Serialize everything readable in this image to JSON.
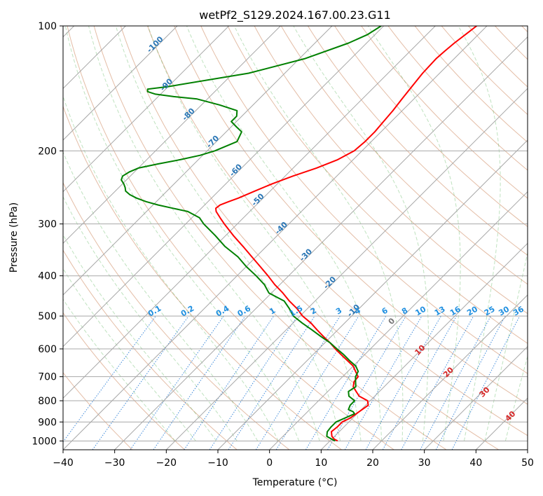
{
  "chart_data": {
    "type": "line",
    "title": "wetPf2_S129.2024.167.00.23.G11",
    "xlabel": "Temperature (°C)",
    "ylabel": "Pressure (hPa)",
    "xlim": [
      -40,
      50
    ],
    "ylim": [
      1050,
      100
    ],
    "y_scale": "log",
    "x_ticks": [
      -40,
      -30,
      -20,
      -10,
      0,
      10,
      20,
      30,
      40,
      50
    ],
    "x_tick_labels": [
      "−40",
      "−30",
      "−20",
      "−10",
      "0",
      "10",
      "20",
      "30",
      "40",
      "50"
    ],
    "y_ticks": [
      100,
      200,
      300,
      400,
      500,
      600,
      700,
      800,
      900,
      1000
    ],
    "y_tick_labels": [
      "100",
      "200",
      "300",
      "400",
      "500",
      "600",
      "700",
      "800",
      "900",
      "1000"
    ],
    "grid": true,
    "isotherm_labels": [
      {
        "t": -100,
        "text": "-100"
      },
      {
        "t": -90,
        "text": "-90"
      },
      {
        "t": -80,
        "text": "-80"
      },
      {
        "t": -70,
        "text": "-70"
      },
      {
        "t": -60,
        "text": "-60"
      },
      {
        "t": -50,
        "text": "-50"
      },
      {
        "t": -40,
        "text": "-40"
      },
      {
        "t": -30,
        "text": "-30"
      },
      {
        "t": -20,
        "text": "-20"
      },
      {
        "t": -10,
        "text": "-10"
      }
    ],
    "mixing_ratio_labels": [
      "0.1",
      "0.2",
      "0.4",
      "0.6",
      "1",
      "1.5",
      "2",
      "3",
      "4",
      "6",
      "8",
      "10",
      "13",
      "16",
      "20",
      "25",
      "30",
      "36"
    ],
    "mixing_ratio_values": [
      0.1,
      0.2,
      0.4,
      0.6,
      1,
      1.5,
      2,
      3,
      4,
      6,
      8,
      10,
      13,
      16,
      20,
      25,
      30,
      36
    ],
    "moist_adiabat_labels": [
      {
        "t": 0,
        "text": "0",
        "color": "#777777"
      },
      {
        "t": 10,
        "text": "10",
        "color": "#d62728"
      },
      {
        "t": 20,
        "text": "20",
        "color": "#d62728"
      },
      {
        "t": 30,
        "text": "30",
        "color": "#d62728"
      },
      {
        "t": 40,
        "text": "40",
        "color": "#d62728"
      }
    ],
    "series": [
      {
        "color": "#ff0000",
        "p": [
          1000,
          990,
          975,
          950,
          925,
          900,
          880,
          850,
          820,
          800,
          780,
          760,
          740,
          720,
          700,
          680,
          660,
          640,
          620,
          600,
          580,
          560,
          540,
          520,
          500,
          480,
          460,
          440,
          420,
          400,
          380,
          360,
          340,
          320,
          300,
          290,
          280,
          275,
          270,
          265,
          260,
          250,
          240,
          230,
          220,
          210,
          200,
          190,
          180,
          170,
          160,
          150,
          140,
          130,
          120,
          115,
          110,
          105,
          100
        ],
        "t": [
          11.5,
          10.5,
          9.5,
          8.5,
          8.7,
          8.7,
          9.5,
          10.0,
          10.5,
          9.5,
          7.0,
          5.5,
          4.0,
          3.2,
          3.0,
          1.5,
          0.0,
          -2.2,
          -4.5,
          -6.8,
          -9.0,
          -11.5,
          -14.0,
          -16.5,
          -19.5,
          -22.0,
          -25.0,
          -27.8,
          -31.0,
          -34.0,
          -37.3,
          -40.8,
          -44.5,
          -48.5,
          -52.5,
          -54.5,
          -56.5,
          -57.2,
          -57.0,
          -56.0,
          -54.8,
          -53.0,
          -51.0,
          -48.5,
          -45.5,
          -43.0,
          -41.5,
          -41.2,
          -41.2,
          -41.5,
          -41.8,
          -42.3,
          -42.8,
          -43.3,
          -43.5,
          -43.3,
          -43.0,
          -42.5,
          -42.0
        ]
      },
      {
        "color": "#008000",
        "p": [
          1000,
          990,
          975,
          950,
          925,
          900,
          880,
          860,
          850,
          840,
          820,
          800,
          780,
          760,
          740,
          720,
          700,
          680,
          660,
          640,
          620,
          600,
          580,
          560,
          540,
          520,
          500,
          480,
          460,
          440,
          420,
          400,
          380,
          360,
          340,
          320,
          300,
          290,
          280,
          275,
          270,
          265,
          260,
          255,
          250,
          245,
          240,
          235,
          230,
          225,
          220,
          215,
          210,
          205,
          200,
          190,
          180,
          175,
          170,
          165,
          160,
          155,
          150,
          148,
          146,
          144,
          142,
          140,
          130,
          120,
          110,
          105,
          100
        ],
        "t": [
          11.0,
          10.0,
          8.5,
          7.7,
          7.5,
          7.5,
          8.5,
          9.5,
          8.8,
          7.5,
          7.0,
          7.0,
          5.0,
          4.0,
          4.5,
          3.5,
          2.5,
          2.0,
          0.5,
          -1.8,
          -4.0,
          -6.5,
          -9.0,
          -12.0,
          -15.0,
          -18.2,
          -21.3,
          -23.5,
          -26.0,
          -30.5,
          -33.0,
          -36.3,
          -40.0,
          -43.5,
          -48.0,
          -52.0,
          -56.5,
          -58.5,
          -62.0,
          -65.5,
          -69.0,
          -72.0,
          -74.5,
          -76.5,
          -78.0,
          -78.8,
          -79.8,
          -81.0,
          -81.5,
          -81.0,
          -80.0,
          -77.0,
          -73.5,
          -70.5,
          -68.5,
          -66.0,
          -67.0,
          -69.0,
          -71.0,
          -71.0,
          -72.0,
          -76.5,
          -82.0,
          -87.0,
          -91.0,
          -93.0,
          -93.5,
          -90.0,
          -77.0,
          -69.0,
          -63.5,
          -61.5,
          -60.5
        ]
      }
    ]
  }
}
